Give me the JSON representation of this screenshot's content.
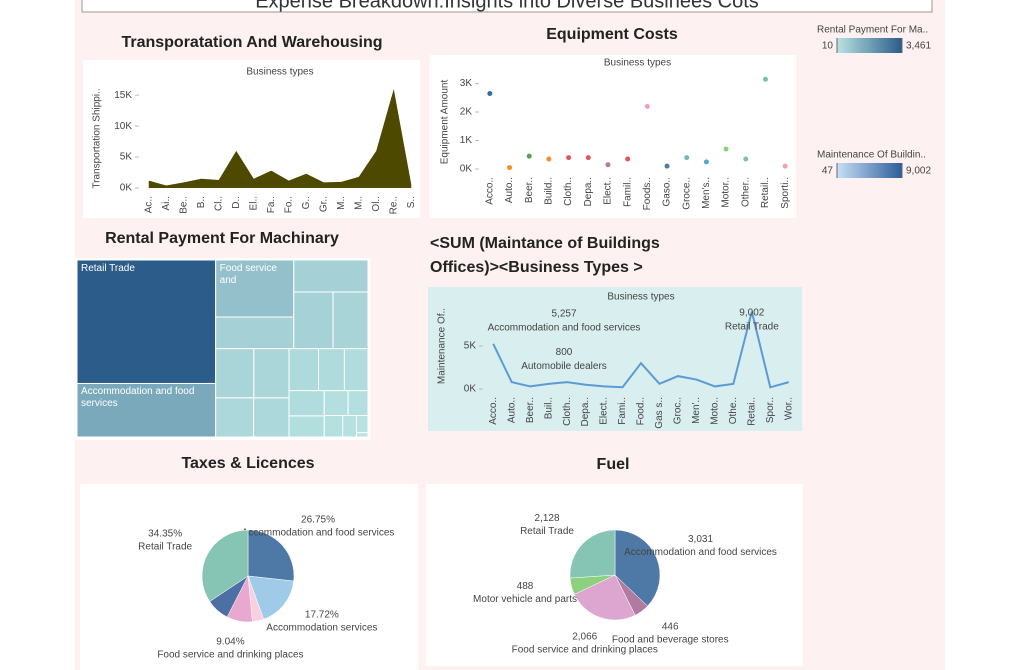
{
  "title": "Expense Breakdown:Insights into Diverse Businees Cots",
  "chart_data": [
    {
      "type": "area",
      "title": "Transporatation And Warehousing",
      "subtitle": "Business types",
      "y_label": "Transportation Shippi..",
      "color": "#4d4a00",
      "categories": [
        "Ac..",
        "Ai..",
        "Be..",
        "B..",
        "Cl..",
        "D..",
        "El..",
        "Fa..",
        "Fo..",
        "G..",
        "Gr..",
        "M..",
        "M..",
        "Ol..",
        "Re..",
        "S.."
      ],
      "values": [
        1200,
        400,
        900,
        1500,
        1300,
        6000,
        1500,
        2800,
        1200,
        2300,
        900,
        1000,
        1800,
        6000,
        16000,
        600
      ],
      "ylim": [
        0,
        16000
      ],
      "yticks": [
        {
          "value": 0,
          "label": "0K"
        },
        {
          "value": 5000,
          "label": "5K"
        },
        {
          "value": 10000,
          "label": "10K"
        },
        {
          "value": 15000,
          "label": "15K"
        }
      ]
    },
    {
      "type": "dot",
      "title": "Equipment Costs",
      "subtitle": "Business types",
      "y_label": "Equipment Amount",
      "categories": [
        "Acco..",
        "Auto..",
        "Beer..",
        "Build..",
        "Cloth..",
        "Depa..",
        "Elect..",
        "Famil..",
        "Foods..",
        "Gaso..",
        "Groce..",
        "Men's..",
        "Motor..",
        "Other..",
        "Retail..",
        "Sporti.."
      ],
      "values": [
        2650,
        50,
        450,
        350,
        400,
        400,
        150,
        350,
        2200,
        100,
        400,
        250,
        700,
        350,
        3150,
        100
      ],
      "colors": [
        "#2e6f9e",
        "#f28e2b",
        "#59a14f",
        "#f28e2b",
        "#e15759",
        "#e15759",
        "#b07aa1",
        "#e15759",
        "#e8a0d0",
        "#4e79a7",
        "#76b7b2",
        "#59a6c4",
        "#8cd17d",
        "#86bcb6",
        "#76c0b0",
        "#f1a2a9"
      ],
      "ylim": [
        0,
        3300
      ],
      "yticks": [
        {
          "value": 0,
          "label": "0K"
        },
        {
          "value": 1000,
          "label": "1K"
        },
        {
          "value": 2000,
          "label": "2K"
        },
        {
          "value": 3000,
          "label": "3K"
        }
      ]
    },
    {
      "type": "treemap",
      "title": "Rental Payment For Machinary",
      "labels": [
        "Retail Trade",
        "Accommodation and food services",
        "Food service and",
        null,
        null,
        null,
        null,
        null,
        null,
        null,
        null,
        null,
        null,
        null,
        null,
        null,
        null,
        null,
        null,
        null,
        null,
        null
      ],
      "values": [
        3461,
        1500,
        900,
        500,
        480,
        450,
        400,
        380,
        350,
        300,
        280,
        250,
        220,
        200,
        180,
        150,
        120,
        100,
        80,
        60,
        40,
        10
      ],
      "color_scale": {
        "title": "Rental Payment For Ma..",
        "colors": [
          "#b8e3e2",
          "#2b5c8a"
        ],
        "ticks": [
          10,
          {
            "value": 3461,
            "label": "3,461"
          }
        ]
      }
    },
    {
      "type": "line",
      "title": [
        "<SUM (Maintance of Buildings",
        "Offices)><Business Types >"
      ],
      "subtitle": "Business types",
      "y_label": "Maintenance Of..",
      "color": "#5b9bd5",
      "categories": [
        "Acco..",
        "Auto..",
        "Beer..",
        "Buil..",
        "Cloth..",
        "Depa..",
        "Elect..",
        "Fami..",
        "Food..",
        "Gas s..",
        "Groc..",
        "Men'..",
        "Moto..",
        "Othe..",
        "Retai..",
        "Spor..",
        "Wor.."
      ],
      "values": [
        5257,
        800,
        300,
        600,
        800,
        500,
        300,
        200,
        3000,
        600,
        1500,
        1100,
        300,
        600,
        9002,
        200,
        800
      ],
      "value_labels": [
        "5,257",
        "800",
        null,
        null,
        null,
        null,
        null,
        null,
        null,
        null,
        null,
        null,
        null,
        null,
        "9,002",
        null,
        null
      ],
      "annotations": [
        "Accommodation and food services",
        "Automobile dealers",
        null,
        null,
        null,
        null,
        null,
        null,
        null,
        null,
        null,
        null,
        null,
        null,
        "Retail Trade",
        null,
        null
      ],
      "ylim": [
        0,
        10000
      ],
      "yticks": [
        {
          "value": 0,
          "label": "0K"
        },
        {
          "value": 5000,
          "label": "5K"
        }
      ],
      "color_scale": {
        "title": "Maintenance Of Buildin..",
        "colors": [
          "#c6e0f5",
          "#2e5d9a"
        ],
        "ticks": [
          47,
          {
            "value": 9002,
            "label": "9,002"
          }
        ]
      }
    },
    {
      "type": "pie",
      "title": "Taxes & Licences",
      "labels": [
        "Accommodation and food services",
        "Accommodation services",
        null,
        "Food service and drinking places",
        null,
        "Retail Trade"
      ],
      "values": [
        26.75,
        17.72,
        4.0,
        9.04,
        8.14,
        34.35
      ],
      "value_labels": [
        "26.75%",
        "17.72%",
        null,
        "9.04%",
        null,
        "34.35%"
      ],
      "colors": [
        "#4e79a7",
        "#a0cbe8",
        "#f9d0e0",
        "#e8a8cf",
        "#4e6fa3",
        "#86c4b4"
      ]
    },
    {
      "type": "pie",
      "title": "Fuel",
      "labels": [
        "Accommodation and food services",
        "Food and beverage stores",
        "Food service and drinking places",
        "Motor vehicle and parts",
        "Retail Trade"
      ],
      "values": [
        3031,
        446,
        2066,
        488,
        2128
      ],
      "value_labels": [
        "3,031",
        "446",
        "2,066",
        "488",
        "2,128"
      ],
      "colors": [
        "#4e79a7",
        "#b07aa1",
        "#dca6d0",
        "#8cd17d",
        "#86c4b4"
      ]
    }
  ]
}
